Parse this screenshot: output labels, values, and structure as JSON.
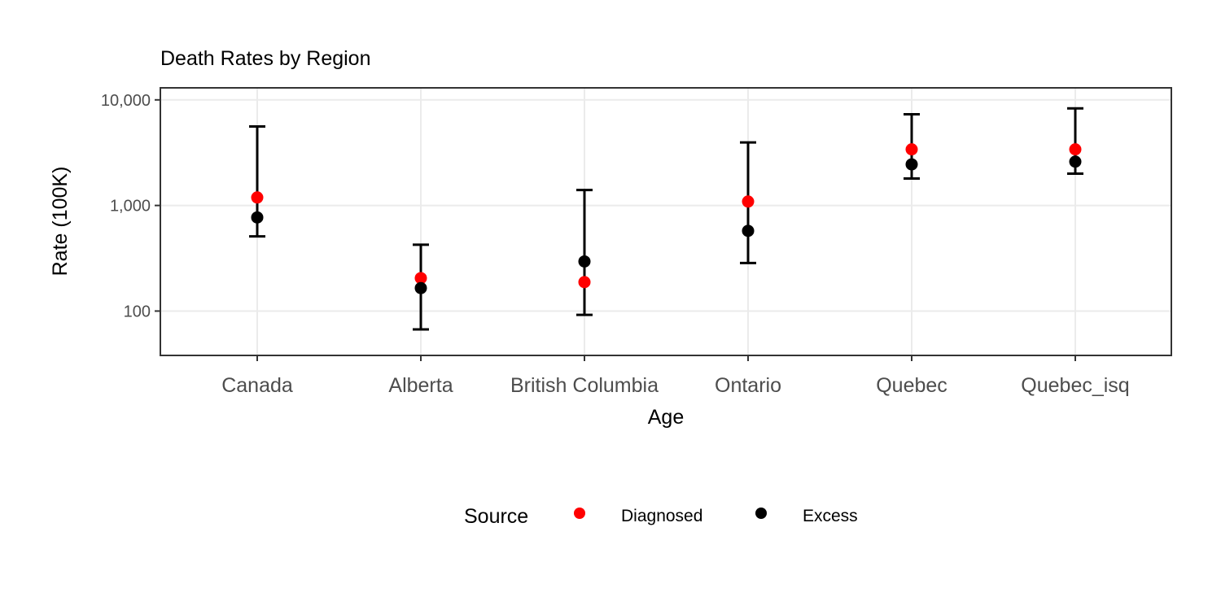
{
  "chart_data": {
    "type": "scatter",
    "title": "Death Rates by Region",
    "xlabel": "Age",
    "ylabel": "Rate (100K)",
    "y_scale": "log10",
    "ylim": [
      38,
      13000
    ],
    "y_ticks": [
      100,
      1000,
      10000
    ],
    "y_tick_labels": [
      "100",
      "1,000",
      "10,000"
    ],
    "categories": [
      "Canada",
      "Alberta",
      "British Columbia",
      "Ontario",
      "Quebec",
      "Quebec_isq"
    ],
    "grid": true,
    "legend": {
      "title": "Source",
      "position": "bottom",
      "entries": [
        {
          "label": "Diagnosed",
          "color": "#ff0000"
        },
        {
          "label": "Excess",
          "color": "#000000"
        }
      ]
    },
    "series": [
      {
        "name": "Diagnosed",
        "color": "#ff0000",
        "values": [
          1190,
          205,
          188,
          1090,
          3400,
          3400
        ]
      },
      {
        "name": "Excess",
        "color": "#000000",
        "values": [
          770,
          165,
          295,
          575,
          2450,
          2600
        ]
      }
    ],
    "error_bars": {
      "series": "Excess",
      "lower": [
        510,
        67,
        92,
        285,
        1800,
        2000
      ],
      "upper": [
        5600,
        425,
        1400,
        3950,
        7300,
        8300
      ]
    }
  }
}
